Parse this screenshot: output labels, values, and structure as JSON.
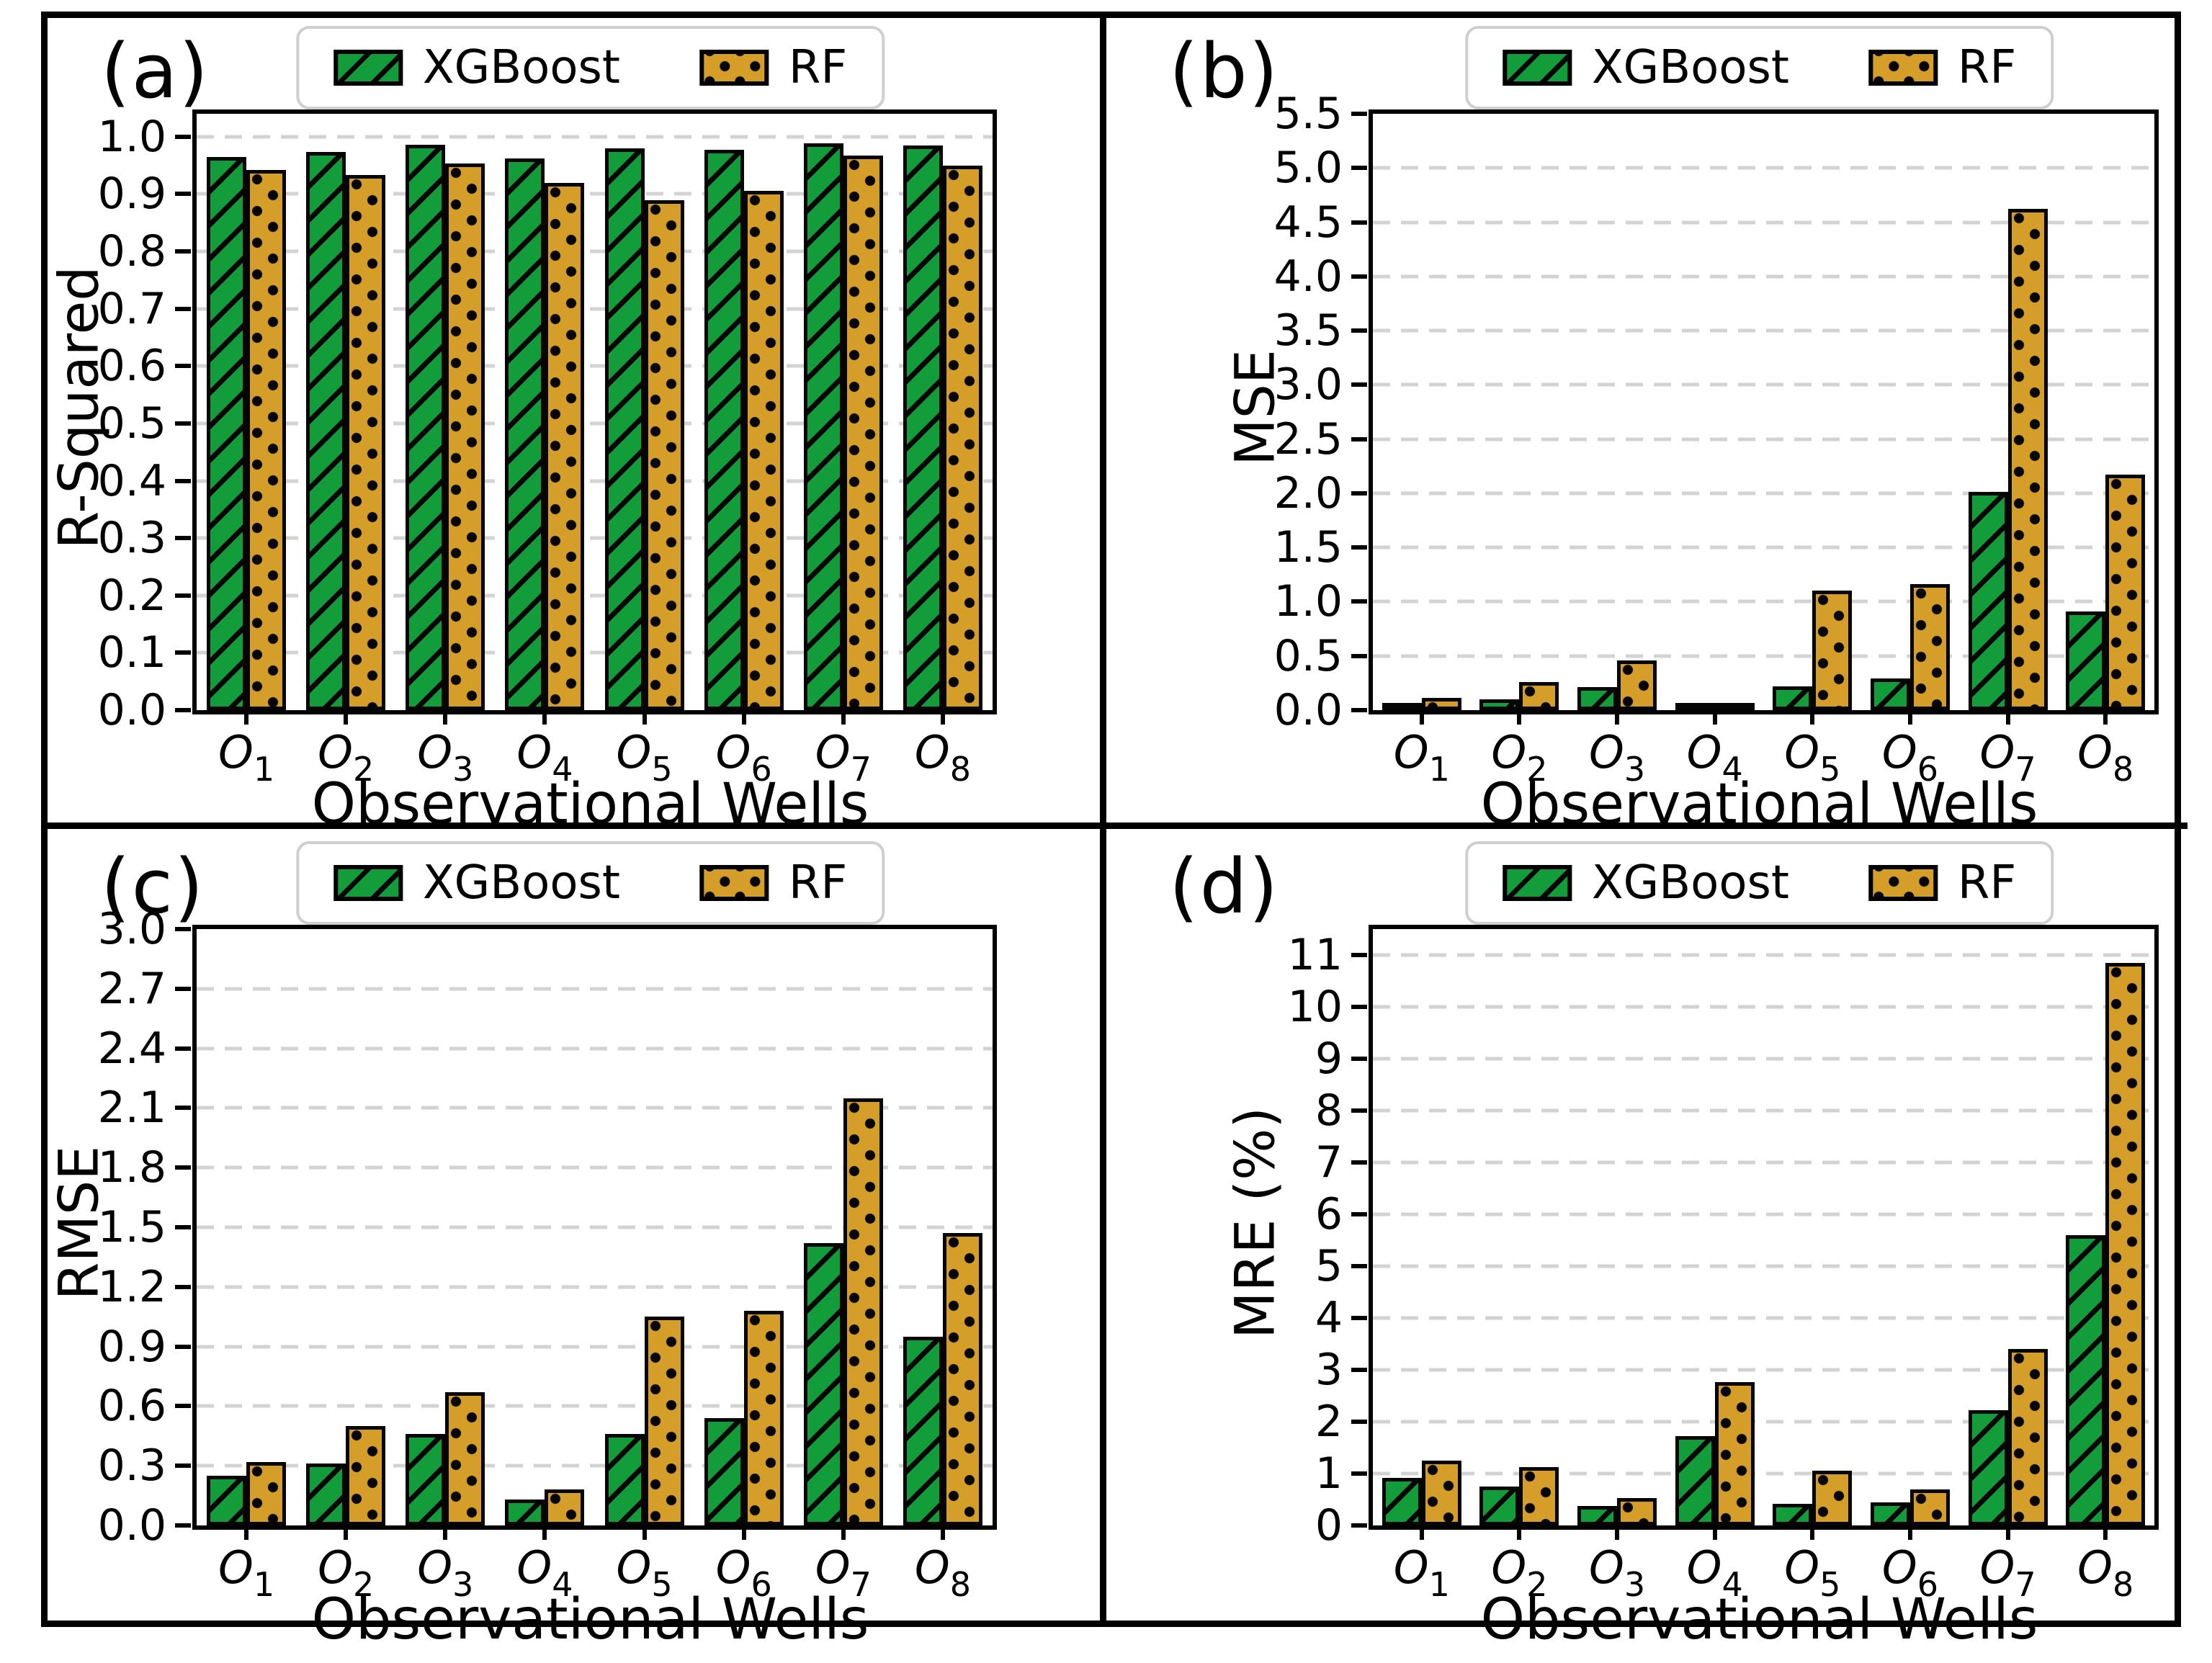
{
  "legend": {
    "xgboost": "XGBoost",
    "rf": "RF"
  },
  "colors": {
    "xgboost": "#129c3a",
    "rf": "#d59e28",
    "bar_edge": "#050505",
    "grid": "#d3d3d3",
    "frame": "#000000",
    "legend_border": "#cfcfcf"
  },
  "chart_data": [
    {
      "panel_label": "(a)",
      "type": "bar",
      "title": "",
      "ylabel": "R-Squared",
      "xlabel": "Observational Wells",
      "grid": true,
      "legend_position": "top-center",
      "ylim": [
        0,
        1.04
      ],
      "categories": [
        "O1",
        "O2",
        "O3",
        "O4",
        "O5",
        "O6",
        "O7",
        "O8"
      ],
      "yticks": [
        {
          "value": 0.0,
          "label": "0.0"
        },
        {
          "value": 0.1,
          "label": "0.1"
        },
        {
          "value": 0.2,
          "label": "0.2"
        },
        {
          "value": 0.3,
          "label": "0.3"
        },
        {
          "value": 0.4,
          "label": "0.4"
        },
        {
          "value": 0.5,
          "label": "0.5"
        },
        {
          "value": 0.6,
          "label": "0.6"
        },
        {
          "value": 0.7,
          "label": "0.7"
        },
        {
          "value": 0.8,
          "label": "0.8"
        },
        {
          "value": 0.9,
          "label": "0.9"
        },
        {
          "value": 1.0,
          "label": "1.0"
        }
      ],
      "series": [
        {
          "name": "XGBoost",
          "values": [
            0.965,
            0.974,
            0.986,
            0.962,
            0.98,
            0.977,
            0.988,
            0.985
          ]
        },
        {
          "name": "RF",
          "values": [
            0.942,
            0.933,
            0.953,
            0.92,
            0.889,
            0.906,
            0.967,
            0.95
          ]
        }
      ]
    },
    {
      "panel_label": "(b)",
      "type": "bar",
      "title": "",
      "ylabel": "MSE",
      "xlabel": "Observational Wells",
      "grid": true,
      "legend_position": "top-center",
      "ylim": [
        0,
        5.5
      ],
      "categories": [
        "O1",
        "O2",
        "O3",
        "O4",
        "O5",
        "O6",
        "O7",
        "O8"
      ],
      "yticks": [
        {
          "value": 0.0,
          "label": "0.0"
        },
        {
          "value": 0.5,
          "label": "0.5"
        },
        {
          "value": 1.0,
          "label": "1.0"
        },
        {
          "value": 1.5,
          "label": "1.5"
        },
        {
          "value": 2.0,
          "label": "2.0"
        },
        {
          "value": 2.5,
          "label": "2.5"
        },
        {
          "value": 3.0,
          "label": "3.0"
        },
        {
          "value": 3.5,
          "label": "3.5"
        },
        {
          "value": 4.0,
          "label": "4.0"
        },
        {
          "value": 4.5,
          "label": "4.5"
        },
        {
          "value": 5.0,
          "label": "5.0"
        },
        {
          "value": 5.5,
          "label": "5.5"
        }
      ],
      "series": [
        {
          "name": "XGBoost",
          "values": [
            0.06,
            0.1,
            0.21,
            0.02,
            0.22,
            0.29,
            2.01,
            0.91
          ]
        },
        {
          "name": "RF",
          "values": [
            0.11,
            0.26,
            0.46,
            0.03,
            1.1,
            1.16,
            4.62,
            2.17
          ]
        }
      ]
    },
    {
      "panel_label": "(c)",
      "type": "bar",
      "title": "",
      "ylabel": "RMSE",
      "xlabel": "Observational Wells",
      "grid": true,
      "legend_position": "top-center",
      "ylim": [
        0,
        3.0
      ],
      "categories": [
        "O1",
        "O2",
        "O3",
        "O4",
        "O5",
        "O6",
        "O7",
        "O8"
      ],
      "yticks": [
        {
          "value": 0.0,
          "label": "0.0"
        },
        {
          "value": 0.3,
          "label": "0.3"
        },
        {
          "value": 0.6,
          "label": "0.6"
        },
        {
          "value": 0.9,
          "label": "0.9"
        },
        {
          "value": 1.2,
          "label": "1.2"
        },
        {
          "value": 1.5,
          "label": "1.5"
        },
        {
          "value": 1.8,
          "label": "1.8"
        },
        {
          "value": 2.1,
          "label": "2.1"
        },
        {
          "value": 2.4,
          "label": "2.4"
        },
        {
          "value": 2.7,
          "label": "2.7"
        },
        {
          "value": 3.0,
          "label": "3.0"
        }
      ],
      "series": [
        {
          "name": "XGBoost",
          "values": [
            0.25,
            0.31,
            0.46,
            0.13,
            0.46,
            0.54,
            1.42,
            0.95
          ]
        },
        {
          "name": "RF",
          "values": [
            0.32,
            0.5,
            0.67,
            0.18,
            1.05,
            1.08,
            2.15,
            1.47
          ]
        }
      ]
    },
    {
      "panel_label": "(d)",
      "type": "bar",
      "title": "",
      "ylabel": "MRE (%)",
      "xlabel": "Observational Wells",
      "grid": true,
      "legend_position": "top-center",
      "ylim": [
        0,
        11.5
      ],
      "categories": [
        "O1",
        "O2",
        "O3",
        "O4",
        "O5",
        "O6",
        "O7",
        "O8"
      ],
      "yticks": [
        {
          "value": 0,
          "label": "0"
        },
        {
          "value": 1,
          "label": "1"
        },
        {
          "value": 2,
          "label": "2"
        },
        {
          "value": 3,
          "label": "3"
        },
        {
          "value": 4,
          "label": "4"
        },
        {
          "value": 5,
          "label": "5"
        },
        {
          "value": 6,
          "label": "6"
        },
        {
          "value": 7,
          "label": "7"
        },
        {
          "value": 8,
          "label": "8"
        },
        {
          "value": 9,
          "label": "9"
        },
        {
          "value": 10,
          "label": "10"
        },
        {
          "value": 11,
          "label": "11"
        }
      ],
      "series": [
        {
          "name": "XGBoost",
          "values": [
            0.92,
            0.75,
            0.38,
            1.72,
            0.42,
            0.44,
            2.22,
            5.6
          ]
        },
        {
          "name": "RF",
          "values": [
            1.25,
            1.13,
            0.53,
            2.77,
            1.05,
            0.7,
            3.4,
            10.85
          ]
        }
      ]
    }
  ]
}
